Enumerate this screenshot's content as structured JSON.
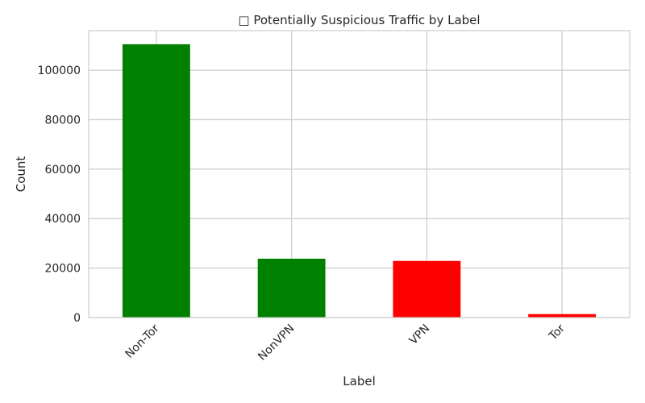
{
  "chart_data": {
    "type": "bar",
    "title": "□ Potentially Suspicious Traffic by Label",
    "xlabel": "Label",
    "ylabel": "Count",
    "categories": [
      "Non-Tor",
      "NonVPN",
      "VPN",
      "Tor"
    ],
    "values": [
      110500,
      23800,
      22900,
      1400
    ],
    "colors": [
      "#008000",
      "#008000",
      "#ff0000",
      "#ff0000"
    ],
    "ylim": [
      0,
      116000
    ],
    "yticks": [
      0,
      20000,
      40000,
      60000,
      80000,
      100000
    ],
    "grid": true,
    "legend": "none"
  }
}
